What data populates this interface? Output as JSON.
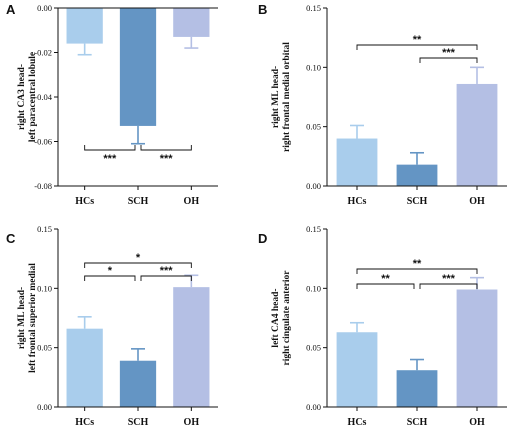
{
  "chart_data": [
    {
      "panel": "A",
      "type": "bar",
      "categories": [
        "HCs",
        "SCH",
        "OH"
      ],
      "values": [
        -0.016,
        -0.053,
        -0.013
      ],
      "errors": [
        0.005,
        0.008,
        0.005
      ],
      "colors": [
        "#a9cdec",
        "#6495c4",
        "#b4bfe4"
      ],
      "ylabel_lines": [
        "right CA3 head-",
        "left paracentral lobule"
      ],
      "ylim": [
        -0.08,
        0.0
      ],
      "yticks": [
        "0.00",
        "-0.02",
        "-0.04",
        "-0.06",
        "-0.08"
      ],
      "significance": [
        {
          "from": 0,
          "to": 1,
          "label": "***"
        },
        {
          "from": 1,
          "to": 2,
          "label": "***"
        }
      ]
    },
    {
      "panel": "B",
      "type": "bar",
      "categories": [
        "HCs",
        "SCH",
        "OH"
      ],
      "values": [
        0.04,
        0.018,
        0.086
      ],
      "errors": [
        0.011,
        0.01,
        0.014
      ],
      "colors": [
        "#a9cdec",
        "#6495c4",
        "#b4bfe4"
      ],
      "ylabel_lines": [
        "right ML head-",
        "right frontal medial orbital"
      ],
      "ylim": [
        0.0,
        0.15
      ],
      "yticks": [
        "0.00",
        "0.05",
        "0.10",
        "0.15"
      ],
      "significance": [
        {
          "from": 0,
          "to": 2,
          "label": "**"
        },
        {
          "from": 1,
          "to": 2,
          "label": "***"
        }
      ]
    },
    {
      "panel": "C",
      "type": "bar",
      "categories": [
        "HCs",
        "SCH",
        "OH"
      ],
      "values": [
        0.066,
        0.039,
        0.101
      ],
      "errors": [
        0.01,
        0.01,
        0.01
      ],
      "colors": [
        "#a9cdec",
        "#6495c4",
        "#b4bfe4"
      ],
      "ylabel_lines": [
        "right ML head-",
        "left frontal superior medial"
      ],
      "ylim": [
        0.0,
        0.15
      ],
      "yticks": [
        "0.00",
        "0.05",
        "0.10",
        "0.15"
      ],
      "significance": [
        {
          "from": 0,
          "to": 2,
          "label": "*"
        },
        {
          "from": 0,
          "to": 1,
          "label": "*"
        },
        {
          "from": 1,
          "to": 2,
          "label": "***"
        }
      ]
    },
    {
      "panel": "D",
      "type": "bar",
      "categories": [
        "HCs",
        "SCH",
        "OH"
      ],
      "values": [
        0.063,
        0.031,
        0.099
      ],
      "errors": [
        0.008,
        0.009,
        0.01
      ],
      "colors": [
        "#a9cdec",
        "#6495c4",
        "#b4bfe4"
      ],
      "ylabel_lines": [
        "left CA4 head-",
        "right cingulate anterior"
      ],
      "ylim": [
        0.0,
        0.15
      ],
      "yticks": [
        "0.00",
        "0.05",
        "0.10",
        "0.15"
      ],
      "significance": [
        {
          "from": 0,
          "to": 2,
          "label": "**"
        },
        {
          "from": 0,
          "to": 1,
          "label": "**"
        },
        {
          "from": 1,
          "to": 2,
          "label": "***"
        }
      ]
    }
  ]
}
